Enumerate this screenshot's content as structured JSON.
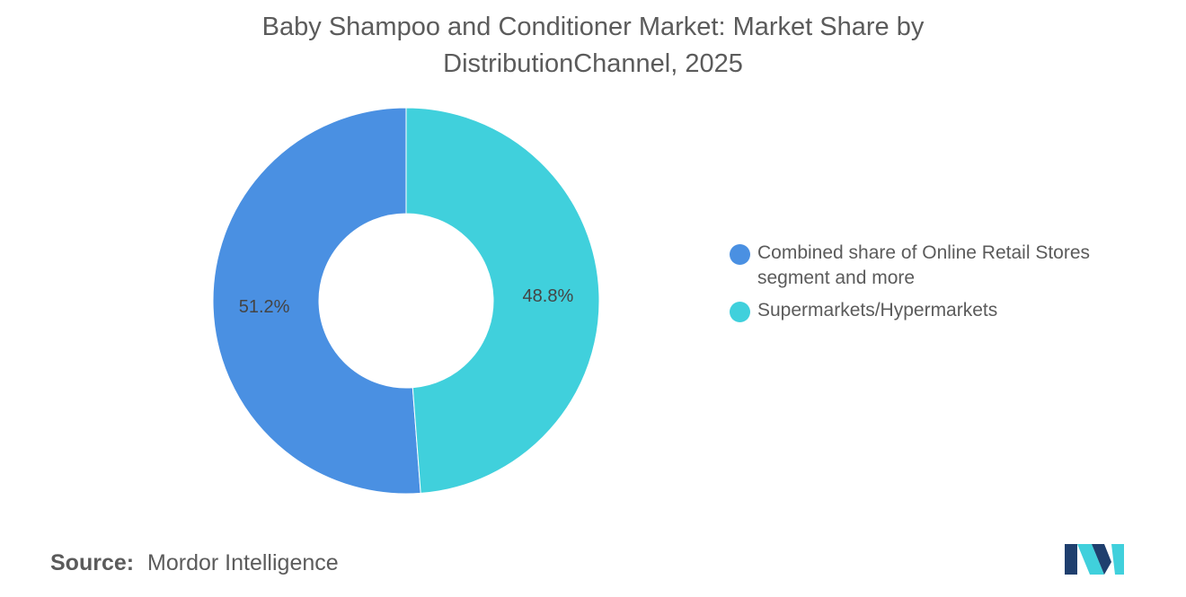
{
  "title_line1": "Baby Shampoo and Conditioner Market: Market Share by",
  "title_line2": "DistributionChannel, 2025",
  "chart_data": {
    "type": "pie",
    "subtype": "donut",
    "title": "Baby Shampoo and Conditioner Market: Market Share by DistributionChannel, 2025",
    "labels": [
      "Combined share of Online Retail Stores segment and more",
      "Supermarkets/Hypermarkets"
    ],
    "values": [
      51.2,
      48.8
    ],
    "value_labels": [
      "51.2%",
      "48.8%"
    ],
    "colors": [
      "#4a90e2",
      "#40d0dc"
    ],
    "legend_position": "right"
  },
  "legend": [
    {
      "label": "Combined share of Online Retail Stores segment and more",
      "color": "#4a90e2"
    },
    {
      "label": "Supermarkets/Hypermarkets",
      "color": "#40d0dc"
    }
  ],
  "source": {
    "key": "Source:",
    "value": "Mordor Intelligence"
  },
  "logo": {
    "icon": "mordor-intelligence-logo",
    "colors": [
      "#1f3f6e",
      "#40d0dc"
    ]
  }
}
